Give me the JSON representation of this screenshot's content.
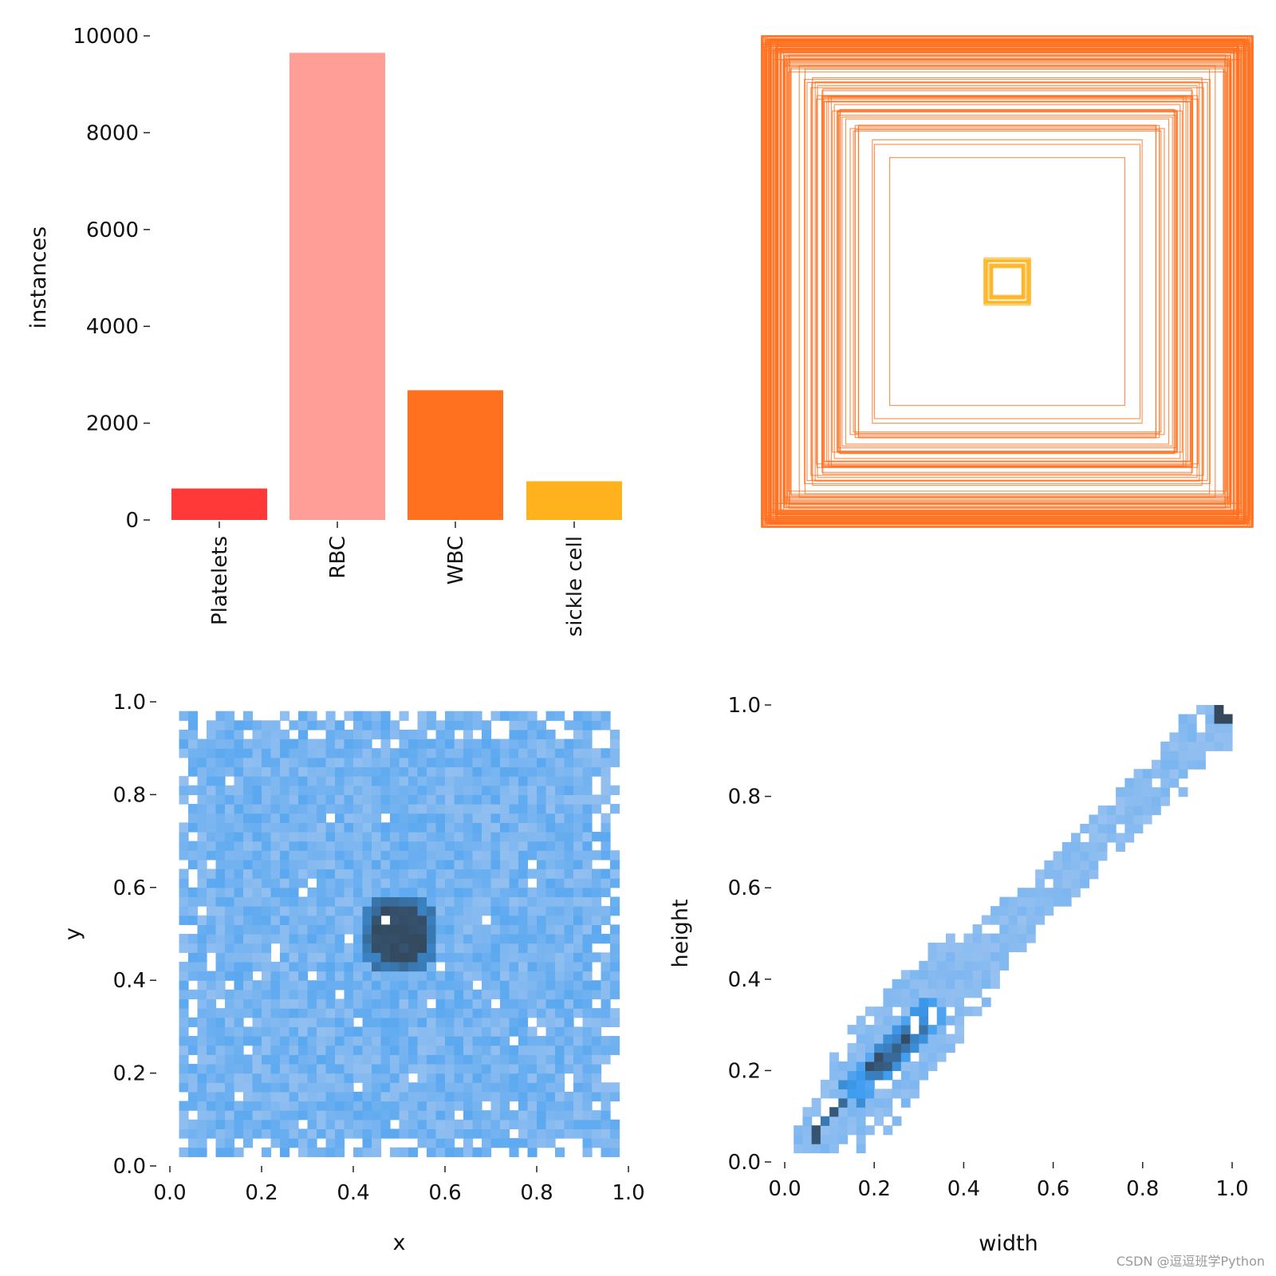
{
  "watermark": "CSDN @逗逗班学Python",
  "colors": {
    "Platelets": "#ff3838",
    "RBC": "#ff9d97",
    "WBC": "#ff701f",
    "sickle cell": "#ffb21d",
    "heat_low": "#a8c8f0",
    "heat_mid": "#3d9cf0",
    "heat_high": "#34495e"
  },
  "chart_data": [
    {
      "type": "bar",
      "title": "",
      "categories": [
        "Platelets",
        "RBC",
        "WBC",
        "sickle cell"
      ],
      "values": [
        650,
        9650,
        2680,
        800
      ],
      "xlabel": "",
      "ylabel": "instances",
      "ylim": [
        0,
        10000
      ],
      "yticks": [
        "0",
        "2000",
        "4000",
        "6000",
        "8000",
        "10000"
      ],
      "grid": false
    },
    {
      "type": "boxes",
      "title": "",
      "description_of_content": "centered bounding boxes per class",
      "groups": [
        {
          "class": "WBC",
          "size_range": [
            0.47,
            1.0
          ],
          "count_shown": 120
        },
        {
          "class": "sickle cell",
          "size_range": [
            0.06,
            0.1
          ],
          "count_shown": 12
        }
      ]
    },
    {
      "type": "heatmap",
      "title": "",
      "xlabel": "x",
      "ylabel": "y",
      "xlim": [
        0,
        1
      ],
      "ylim": [
        0,
        1
      ],
      "xticks": [
        "0.0",
        "0.2",
        "0.4",
        "0.6",
        "0.8",
        "1.0"
      ],
      "yticks": [
        "0.0",
        "0.2",
        "0.4",
        "0.6",
        "0.8",
        "1.0"
      ],
      "bins": 50,
      "hotspot": {
        "x": 0.5,
        "y": 0.5
      }
    },
    {
      "type": "heatmap",
      "title": "",
      "xlabel": "width",
      "ylabel": "height",
      "xlim": [
        0,
        1
      ],
      "ylim": [
        0,
        1
      ],
      "xticks": [
        "0.0",
        "0.2",
        "0.4",
        "0.6",
        "0.8",
        "1.0"
      ],
      "yticks": [
        "0.0",
        "0.2",
        "0.4",
        "0.6",
        "0.8",
        "1.0"
      ],
      "bins": 50,
      "hotspot": {
        "x": 0.25,
        "y": 0.25
      }
    }
  ]
}
